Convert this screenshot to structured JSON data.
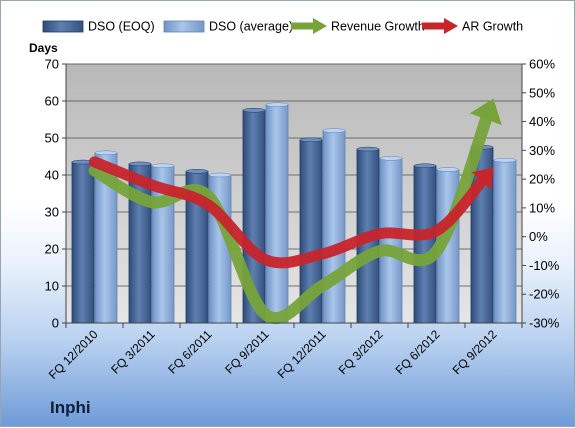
{
  "chart_data": {
    "type": "bar",
    "title": "",
    "company": "Inphi",
    "ylabel": "Days",
    "y2label": "",
    "ylim": [
      0,
      70
    ],
    "y_ticks": [
      0,
      10,
      20,
      30,
      40,
      50,
      60,
      70
    ],
    "y2lim": [
      -30,
      60
    ],
    "y2_ticks": [
      "-30%",
      "-20%",
      "-10%",
      "0%",
      "10%",
      "20%",
      "30%",
      "40%",
      "50%",
      "60%"
    ],
    "grid": true,
    "legend_position": "top",
    "categories": [
      "FQ 12/2010",
      "FQ 3/2011",
      "FQ 6/2011",
      "FQ 9/2011",
      "FQ 12/2011",
      "FQ 3/2012",
      "FQ 6/2012",
      "FQ 9/2012"
    ],
    "series": [
      {
        "name": "DSO (EOQ)",
        "kind": "bar",
        "axis": "left",
        "color": "#4a6a9b",
        "values": [
          43.5,
          43,
          41,
          57.5,
          49.5,
          47,
          42.5,
          47.5
        ]
      },
      {
        "name": "DSO (average)",
        "kind": "bar",
        "axis": "left",
        "color": "#8fb0dc",
        "values": [
          46,
          42.5,
          40,
          59,
          52,
          44.5,
          41.5,
          44
        ]
      },
      {
        "name": "Revenue Growth",
        "kind": "arrow-line",
        "axis": "right",
        "color": "#77a33a",
        "values": [
          23,
          12,
          14,
          -27,
          -17,
          -5,
          -5,
          48
        ]
      },
      {
        "name": "AR Growth",
        "kind": "arrow-line",
        "axis": "right",
        "color": "#c8242b",
        "values": [
          26,
          18,
          11,
          -8,
          -6,
          1,
          2,
          24
        ]
      }
    ]
  }
}
